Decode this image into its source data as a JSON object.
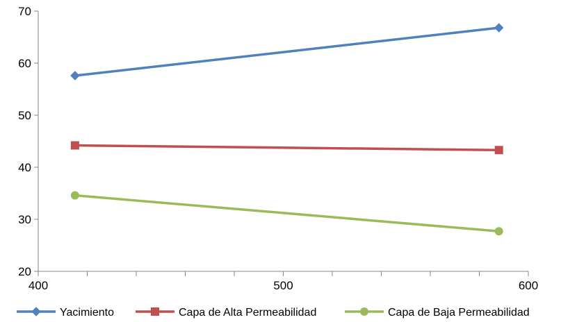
{
  "chart_data": {
    "type": "line",
    "title": "",
    "xlabel": "",
    "ylabel": "",
    "xlim": [
      400,
      600
    ],
    "ylim": [
      20,
      70
    ],
    "x_ticks": [
      400,
      500,
      600
    ],
    "x_minor_ticks": [
      420,
      440,
      460,
      480,
      520,
      540,
      560,
      580
    ],
    "y_ticks": [
      20,
      30,
      40,
      50,
      60,
      70
    ],
    "grid": false,
    "legend_position": "bottom",
    "series": [
      {
        "name": "Yacimiento",
        "color": "#4F81BD",
        "marker": "diamond",
        "points": [
          [
            415,
            57.6
          ],
          [
            588,
            66.8
          ]
        ]
      },
      {
        "name": "Capa de Alta Permeabilidad",
        "color": "#C0504D",
        "marker": "square",
        "points": [
          [
            415,
            44.2
          ],
          [
            588,
            43.3
          ]
        ]
      },
      {
        "name": "Capa de Baja Permeabilidad",
        "color": "#9BBB59",
        "marker": "circle",
        "points": [
          [
            415,
            34.6
          ],
          [
            588,
            27.7
          ]
        ]
      }
    ]
  }
}
